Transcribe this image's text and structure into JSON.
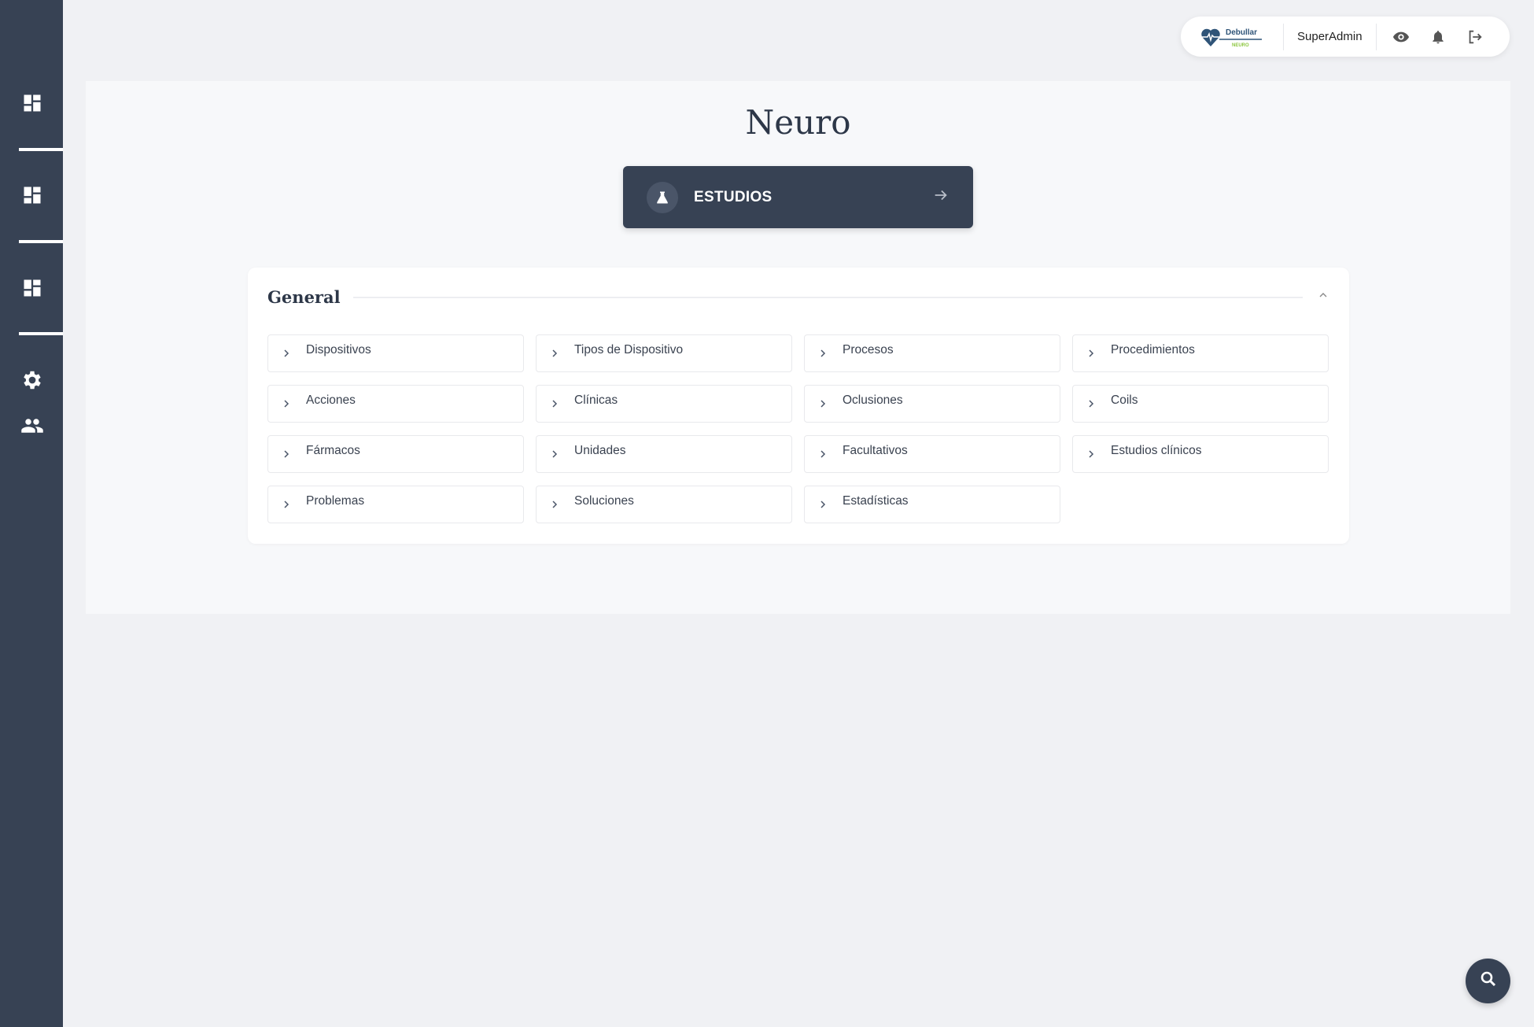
{
  "header": {
    "logo_text": "Debullar NEURO",
    "user": "SuperAdmin"
  },
  "main": {
    "title": "Neuro",
    "estudios_label": "ESTUDIOS",
    "section": {
      "title": "General",
      "items": [
        {
          "label": "Dispositivos"
        },
        {
          "label": "Tipos de Dispositivo"
        },
        {
          "label": "Procesos"
        },
        {
          "label": "Procedimientos"
        },
        {
          "label": "Acciones"
        },
        {
          "label": "Clínicas"
        },
        {
          "label": "Oclusiones"
        },
        {
          "label": "Coils"
        },
        {
          "label": "Fármacos"
        },
        {
          "label": "Unidades"
        },
        {
          "label": "Facultativos"
        },
        {
          "label": "Estudios clínicos"
        },
        {
          "label": "Problemas"
        },
        {
          "label": "Soluciones"
        },
        {
          "label": "Estadísticas"
        }
      ]
    }
  },
  "colors": {
    "sidebar": "#374254",
    "accent_green": "#8cc63f",
    "logo_blue": "#2f5478"
  }
}
